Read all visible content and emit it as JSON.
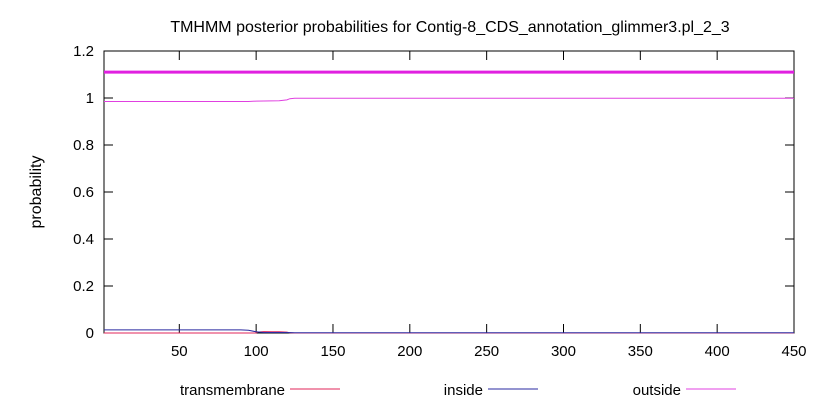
{
  "chart_data": {
    "type": "line",
    "title": "TMHMM posterior probabilities for Contig-8_CDS_annotation_glimmer3.pl_2_3",
    "xlabel": "",
    "ylabel": "probability",
    "xlim": [
      1,
      450
    ],
    "ylim": [
      0,
      1.2
    ],
    "x_ticks": [
      50,
      100,
      150,
      200,
      250,
      300,
      350,
      400,
      450
    ],
    "y_ticks": [
      0,
      0.2,
      0.4,
      0.6,
      0.8,
      1,
      1.2
    ],
    "x_tick_labels": [
      "50",
      "100",
      "150",
      "200",
      "250",
      "300",
      "350",
      "400",
      "450"
    ],
    "y_tick_labels": [
      "0",
      "0.2",
      "0.4",
      "0.6",
      "0.8",
      "1",
      "1.2"
    ],
    "grid": false,
    "legend_position": "bottom",
    "reference_line": {
      "y": 1.11,
      "color": "#e020e0"
    },
    "series": [
      {
        "name": "transmembrane",
        "color": "#e0245a",
        "x": [
          1,
          100,
          101,
          105,
          110,
          115,
          120,
          122,
          125,
          450
        ],
        "y": [
          0,
          0,
          0.004,
          0.006,
          0.005,
          0.005,
          0.004,
          0.001,
          0,
          0
        ]
      },
      {
        "name": "inside",
        "color": "#2a2aa0",
        "x": [
          1,
          90,
          95,
          100,
          105,
          120,
          125,
          450
        ],
        "y": [
          0.013,
          0.013,
          0.012,
          0.005,
          0.002,
          0.002,
          0.001,
          0.001
        ]
      },
      {
        "name": "outside",
        "color": "#e040e0",
        "x": [
          1,
          95,
          100,
          115,
          120,
          122,
          125,
          450
        ],
        "y": [
          0.985,
          0.985,
          0.987,
          0.988,
          0.992,
          0.997,
          0.999,
          0.999
        ]
      }
    ]
  }
}
